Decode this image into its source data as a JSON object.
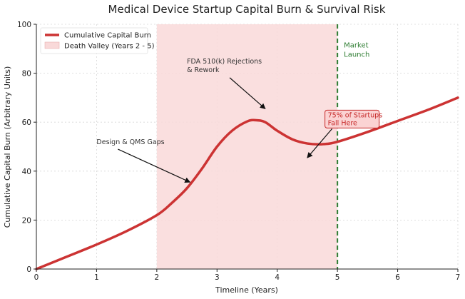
{
  "chart_data": {
    "type": "line",
    "title": "Medical Device Startup Capital Burn & Survival Risk",
    "xlabel": "Timeline (Years)",
    "ylabel": "Cumulative Capital Burn (Arbitrary Units)",
    "xlim": [
      0,
      7
    ],
    "ylim": [
      0,
      100
    ],
    "xticks": [
      "0",
      "1",
      "2",
      "3",
      "4",
      "5",
      "6",
      "7"
    ],
    "yticks": [
      "0",
      "20",
      "40",
      "60",
      "80",
      "100"
    ],
    "grid": true,
    "legend_position": "top-left",
    "series": [
      {
        "name": "Cumulative Capital Burn",
        "color": "#cc3333",
        "x": [
          0,
          0.5,
          1,
          1.5,
          2,
          2.25,
          2.5,
          2.75,
          3,
          3.25,
          3.5,
          3.65,
          3.8,
          4,
          4.25,
          4.5,
          4.75,
          5,
          5.5,
          6,
          6.5,
          7
        ],
        "y": [
          0,
          5,
          10,
          15.5,
          22,
          27,
          33,
          41,
          50,
          56.5,
          60.3,
          60.8,
          60,
          56.5,
          53,
          51.3,
          51,
          52,
          56,
          60.5,
          65,
          70
        ]
      }
    ],
    "shaded_region": {
      "name": "Death Valley (Years 2 - 5)",
      "x_start": 2,
      "x_end": 5,
      "color": "#f9d9d9"
    },
    "vertical_line": {
      "x": 5,
      "label_line1": "Market",
      "label_line2": "Launch",
      "color": "#2e7d32"
    },
    "annotations": [
      {
        "id": "design",
        "text": "Design & QMS Gaps",
        "text_x": 1.0,
        "text_y": 51,
        "arrow_x": 2.55,
        "arrow_y": 35.5
      },
      {
        "id": "fda",
        "line1": "FDA 510(k) Rejections",
        "line2": "& Rework",
        "text_x": 2.5,
        "text_y": 84,
        "arrow_x": 3.8,
        "arrow_y": 65.5
      },
      {
        "id": "survival",
        "line1": "75% of Startups",
        "line2": "Fall Here",
        "text_x": 4.84,
        "text_y": 62,
        "arrow_x": 4.5,
        "arrow_y": 45.5
      }
    ]
  }
}
